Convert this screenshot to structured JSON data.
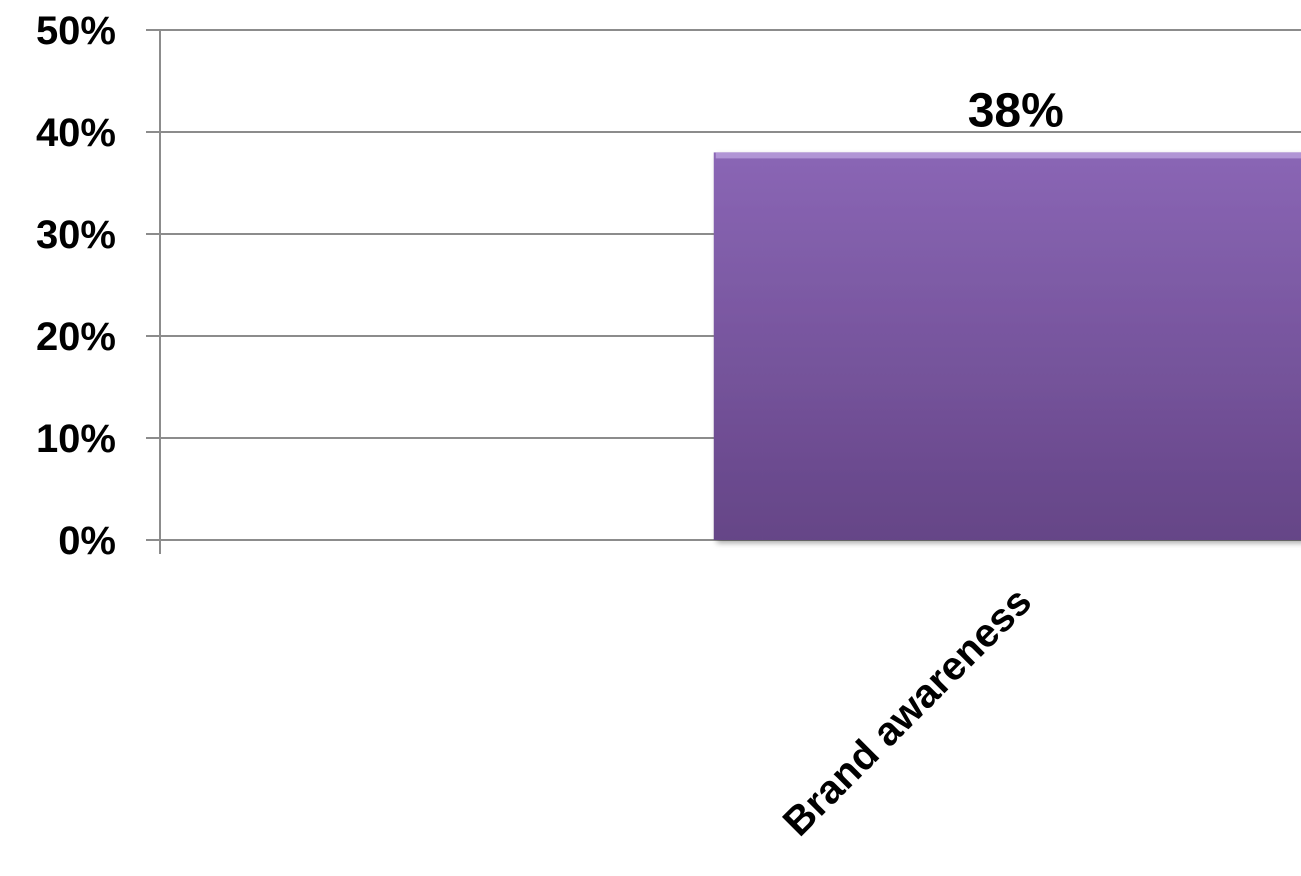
{
  "chart_data": {
    "type": "bar",
    "categories": [
      "",
      "Brand awareness"
    ],
    "values": [
      null,
      38
    ],
    "data_labels": [
      "",
      "38%"
    ],
    "y_tick_labels": [
      "0%",
      "10%",
      "20%",
      "30%",
      "40%",
      "50%"
    ],
    "y_ticks": [
      0,
      10,
      20,
      30,
      40,
      50
    ],
    "ylim": [
      0,
      50
    ],
    "grid": true,
    "title": "",
    "xlabel": "",
    "ylabel": "",
    "colors": {
      "bar_top": "#8a66b5",
      "bar_bottom": "#654587",
      "bar_edge": "#b59ad8"
    }
  }
}
